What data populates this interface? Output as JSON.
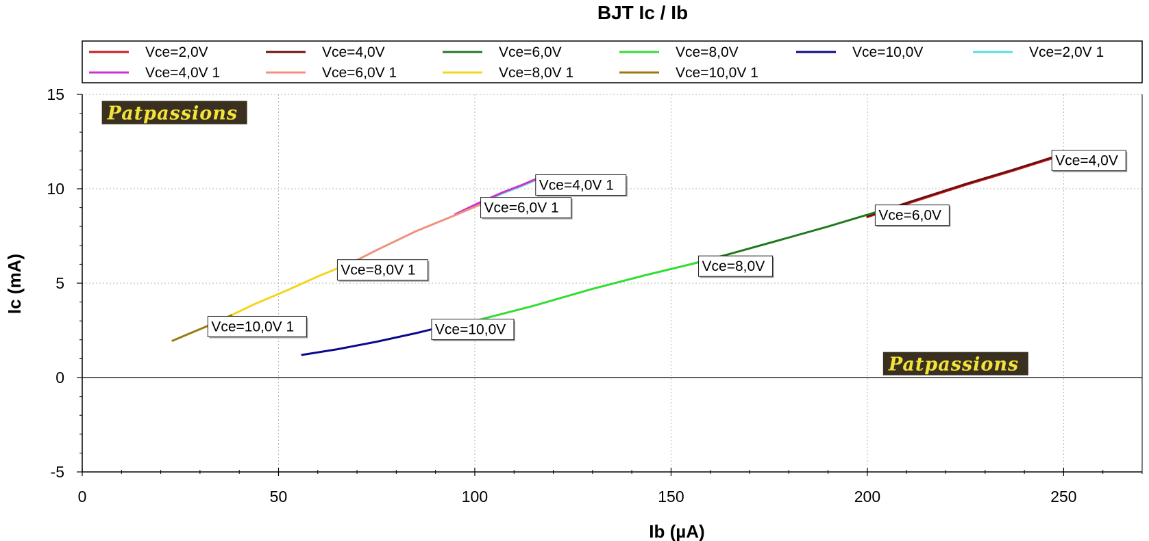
{
  "chart_data": {
    "type": "line",
    "title": "BJT Ic / Ib",
    "xlabel": "Ib (µA)",
    "ylabel": "Ic (mA)",
    "xlim": [
      0,
      270
    ],
    "ylim": [
      -5,
      15
    ],
    "xticks": [
      0,
      50,
      100,
      150,
      200,
      250
    ],
    "yticks": [
      -5,
      0,
      5,
      10,
      15
    ],
    "grid": true,
    "legend_position": "top",
    "legend_columns": 6,
    "series": [
      {
        "name": "Vce=2,0V",
        "color": "#cc1a1a",
        "x": [
          200,
          210,
          225,
          237,
          250
        ],
        "y": [
          8.5,
          9.2,
          10.2,
          10.95,
          11.8
        ]
      },
      {
        "name": "Vce=4,0V",
        "color": "#6b0f0f",
        "x": [
          200,
          210,
          225,
          237,
          250
        ],
        "y": [
          8.55,
          9.25,
          10.25,
          11.0,
          11.85
        ]
      },
      {
        "name": "Vce=6,0V",
        "color": "#1f7a1f",
        "x": [
          155,
          165,
          178,
          190,
          202
        ],
        "y": [
          6.0,
          6.55,
          7.3,
          8.0,
          8.75
        ]
      },
      {
        "name": "Vce=8,0V",
        "color": "#33dd33",
        "x": [
          100,
          115,
          130,
          143,
          157
        ],
        "y": [
          3.0,
          3.8,
          4.7,
          5.4,
          6.1
        ]
      },
      {
        "name": "Vce=10,0V",
        "color": "#0a0a8c",
        "x": [
          56,
          65,
          75,
          85,
          95
        ],
        "y": [
          1.2,
          1.5,
          1.9,
          2.35,
          2.85
        ]
      },
      {
        "name": "Vce=2,0V 1",
        "color": "#55e0e0",
        "x": [
          95,
          101,
          107,
          112,
          116
        ],
        "y": [
          8.6,
          9.2,
          9.75,
          10.15,
          10.5
        ]
      },
      {
        "name": "Vce=4,0V 1",
        "color": "#cc33cc",
        "x": [
          95,
          101,
          107,
          112,
          116
        ],
        "y": [
          8.65,
          9.25,
          9.8,
          10.2,
          10.55
        ]
      },
      {
        "name": "Vce=6,0V 1",
        "color": "#f09080",
        "x": [
          66,
          75,
          85,
          95,
          103
        ],
        "y": [
          5.8,
          6.75,
          7.75,
          8.6,
          9.3
        ]
      },
      {
        "name": "Vce=8,0V 1",
        "color": "#f5d51a",
        "x": [
          36,
          44,
          52,
          60,
          67
        ],
        "y": [
          3.1,
          3.9,
          4.6,
          5.35,
          5.95
        ]
      },
      {
        "name": "Vce=10,0V 1",
        "color": "#9a7a10",
        "x": [
          23,
          27,
          31,
          35,
          38
        ],
        "y": [
          1.95,
          2.3,
          2.65,
          3.0,
          3.3
        ]
      }
    ],
    "annotations": [
      {
        "text": "Vce=4,0V 1",
        "x": 115.5,
        "y": 10.2
      },
      {
        "text": "Vce=6,0V 1",
        "x": 101.5,
        "y": 9.0
      },
      {
        "text": "Vce=8,0V 1",
        "x": 65,
        "y": 5.7
      },
      {
        "text": "Vce=10,0V 1",
        "x": 32,
        "y": 2.7
      },
      {
        "text": "Vce=4,0V",
        "x": 247,
        "y": 11.5
      },
      {
        "text": "Vce=6,0V",
        "x": 202,
        "y": 8.6
      },
      {
        "text": "Vce=8,0V",
        "x": 157,
        "y": 5.9
      },
      {
        "text": "Vce=10,0V",
        "x": 89,
        "y": 2.55
      }
    ],
    "watermarks": [
      {
        "text": "Patpassions",
        "x": 5,
        "y": 14.0
      },
      {
        "text": "Patpassions",
        "x": 204,
        "y": 0.7
      }
    ]
  }
}
